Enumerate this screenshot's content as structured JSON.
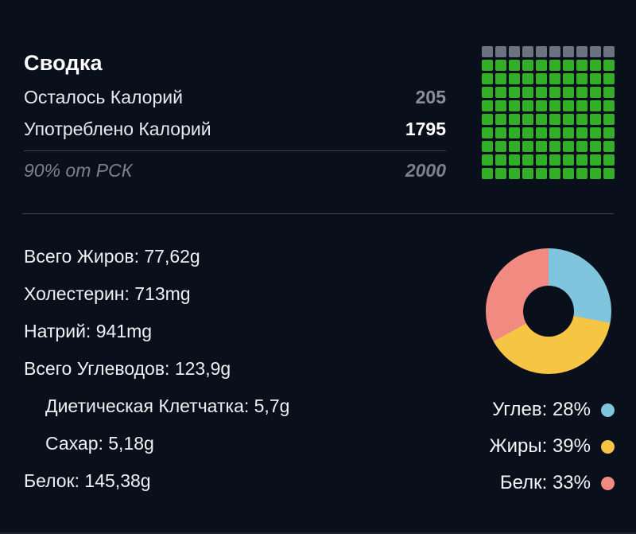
{
  "colors": {
    "background": "#0A0F1C",
    "text_primary": "#ECEEF1",
    "text_muted": "#8A909B",
    "text_goal": "#7A818C",
    "divider": "#3A4150",
    "waffle_filled": "#32AE29",
    "waffle_empty": "#6C7380",
    "carbs": "#7FC5DD",
    "fat": "#F6C544",
    "protein": "#F18B82"
  },
  "summary": {
    "title": "Сводка",
    "rows": [
      {
        "label": "Осталось Калорий",
        "value": "205",
        "emphasis": "muted"
      },
      {
        "label": "Употреблено Калорий",
        "value": "1795",
        "emphasis": "strong"
      }
    ],
    "goal": {
      "label": "90% от РСК",
      "value": "2000"
    }
  },
  "waffle": {
    "total_cells": 100,
    "filled_cells": 90,
    "filled_color": "#32AE29",
    "empty_color": "#6C7380"
  },
  "nutrients": [
    {
      "label": "Всего Жиров",
      "value": "77,62g",
      "indent": false
    },
    {
      "label": "Холестерин",
      "value": "713mg",
      "indent": false
    },
    {
      "label": "Натрий",
      "value": "941mg",
      "indent": false
    },
    {
      "label": "Всего Углеводов",
      "value": "123,9g",
      "indent": false
    },
    {
      "label": "Диетическая Клетчатка",
      "value": "5,7g",
      "indent": true
    },
    {
      "label": "Сахар",
      "value": "5,18g",
      "indent": true
    },
    {
      "label": "Белок",
      "value": "145,38g",
      "indent": false
    }
  ],
  "legend": [
    {
      "label": "Углев",
      "value": "28%",
      "color": "#7FC5DD"
    },
    {
      "label": "Жиры",
      "value": "39%",
      "color": "#F6C544"
    },
    {
      "label": "Белк",
      "value": "33%",
      "color": "#F18B82"
    }
  ],
  "chart_data": [
    {
      "type": "pie",
      "donut": true,
      "labels": [
        "Углев",
        "Жиры",
        "Белк"
      ],
      "values": [
        28,
        39,
        33
      ],
      "unit": "%",
      "colors": [
        "#7FC5DD",
        "#F6C544",
        "#F18B82"
      ],
      "start_angle_deg": 0,
      "direction": "clockwise",
      "legend_position": "bottom-right"
    },
    {
      "type": "waffle",
      "rows": 10,
      "cols": 10,
      "filled_cells": 90,
      "empty_cells": 10,
      "percent_filled": 90,
      "filled_color": "#32AE29",
      "empty_color": "#6C7380",
      "empty_position": "top-row"
    }
  ]
}
